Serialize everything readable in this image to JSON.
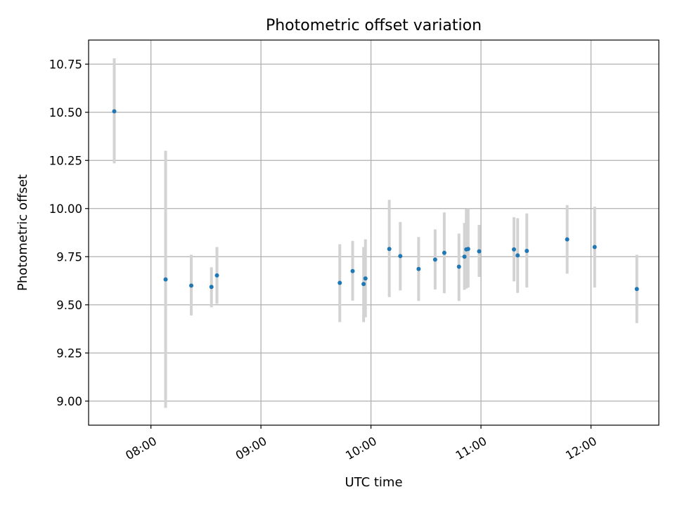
{
  "chart_data": {
    "type": "scatter",
    "title": "Photometric offset variation",
    "xlabel": "UTC time",
    "ylabel": "Photometric offset",
    "x_ticks": [
      "08:00",
      "09:00",
      "10:00",
      "11:00",
      "12:00"
    ],
    "y_ticks": [
      "9.00",
      "9.25",
      "9.50",
      "9.75",
      "10.00",
      "10.25",
      "10.50",
      "10.75"
    ],
    "xlim": [
      "07:26",
      "12:37"
    ],
    "ylim": [
      8.875,
      10.875
    ],
    "grid": true,
    "colors": {
      "point": "#1f77b4",
      "errorbar": "#d3d3d3",
      "grid": "#b0b0b0"
    },
    "points": [
      {
        "x": "07:40",
        "y": 10.505,
        "yerr_low": 10.235,
        "yerr_high": 10.78
      },
      {
        "x": "08:08",
        "y": 9.632,
        "yerr_low": 8.965,
        "yerr_high": 10.3
      },
      {
        "x": "08:22",
        "y": 9.6,
        "yerr_low": 9.445,
        "yerr_high": 9.76
      },
      {
        "x": "08:33",
        "y": 9.593,
        "yerr_low": 9.487,
        "yerr_high": 9.695
      },
      {
        "x": "08:36",
        "y": 9.653,
        "yerr_low": 9.505,
        "yerr_high": 9.8
      },
      {
        "x": "09:43",
        "y": 9.614,
        "yerr_low": 9.41,
        "yerr_high": 9.815
      },
      {
        "x": "09:50",
        "y": 9.675,
        "yerr_low": 9.522,
        "yerr_high": 9.832
      },
      {
        "x": "09:56",
        "y": 9.608,
        "yerr_low": 9.41,
        "yerr_high": 9.8
      },
      {
        "x": "09:57",
        "y": 9.637,
        "yerr_low": 9.435,
        "yerr_high": 9.84
      },
      {
        "x": "10:10",
        "y": 9.79,
        "yerr_low": 9.54,
        "yerr_high": 10.045
      },
      {
        "x": "10:16",
        "y": 9.753,
        "yerr_low": 9.575,
        "yerr_high": 9.93
      },
      {
        "x": "10:26",
        "y": 9.686,
        "yerr_low": 9.52,
        "yerr_high": 9.852
      },
      {
        "x": "10:35",
        "y": 9.735,
        "yerr_low": 9.58,
        "yerr_high": 9.892
      },
      {
        "x": "10:40",
        "y": 9.77,
        "yerr_low": 9.56,
        "yerr_high": 9.98
      },
      {
        "x": "10:48",
        "y": 9.698,
        "yerr_low": 9.52,
        "yerr_high": 9.87
      },
      {
        "x": "10:51",
        "y": 9.75,
        "yerr_low": 9.578,
        "yerr_high": 9.925
      },
      {
        "x": "10:52",
        "y": 9.788,
        "yerr_low": 9.585,
        "yerr_high": 9.998
      },
      {
        "x": "10:53",
        "y": 9.79,
        "yerr_low": 9.59,
        "yerr_high": 10.0
      },
      {
        "x": "10:59",
        "y": 9.778,
        "yerr_low": 9.645,
        "yerr_high": 9.915
      },
      {
        "x": "11:18",
        "y": 9.788,
        "yerr_low": 9.622,
        "yerr_high": 9.955
      },
      {
        "x": "11:20",
        "y": 9.757,
        "yerr_low": 9.562,
        "yerr_high": 9.95
      },
      {
        "x": "11:25",
        "y": 9.78,
        "yerr_low": 9.59,
        "yerr_high": 9.975
      },
      {
        "x": "11:47",
        "y": 9.84,
        "yerr_low": 9.662,
        "yerr_high": 10.018
      },
      {
        "x": "12:02",
        "y": 9.8,
        "yerr_low": 9.59,
        "yerr_high": 10.01
      },
      {
        "x": "12:25",
        "y": 9.582,
        "yerr_low": 9.405,
        "yerr_high": 9.76
      }
    ]
  }
}
